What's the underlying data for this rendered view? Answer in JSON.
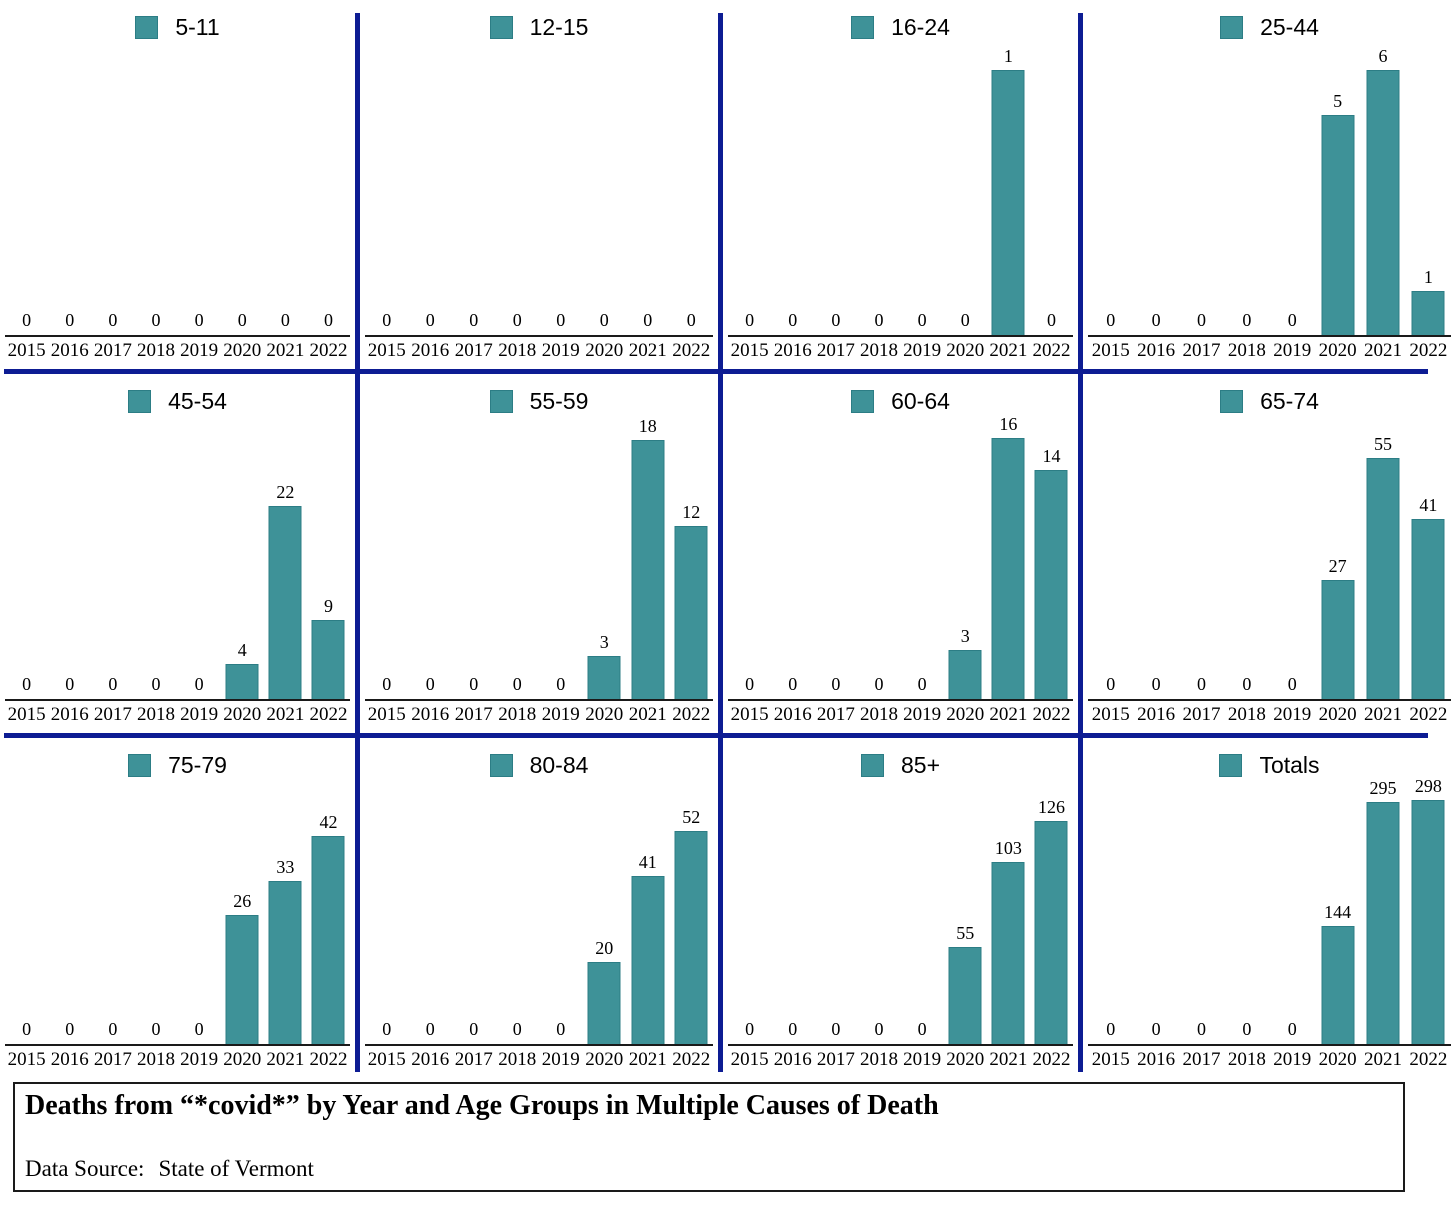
{
  "colors": {
    "bar_fill": "#3E9298",
    "bar_border": "#2C7D85",
    "divider_navy": "#0D1C93",
    "axis_black": "#1A1A1A"
  },
  "title_box": {
    "title": "Deaths from “*covid*” by Year and Age Groups in Multiple Causes of Death",
    "data_source_label": "Data Source:",
    "data_source_value": "State of Vermont"
  },
  "chart_data": {
    "type": "bar",
    "layout": "small-multiples 4x3",
    "grid": false,
    "legend_position": "upper center",
    "xlabel": "",
    "ylabel": "",
    "categories": [
      "2015",
      "2016",
      "2017",
      "2018",
      "2019",
      "2020",
      "2021",
      "2022"
    ],
    "series": [
      {
        "id": "age-5-11",
        "name": "5-11",
        "values": [
          0,
          0,
          0,
          0,
          0,
          0,
          0,
          0
        ],
        "ylim": 1
      },
      {
        "id": "age-12-15",
        "name": "12-15",
        "values": [
          0,
          0,
          0,
          0,
          0,
          0,
          0,
          0
        ],
        "ylim": 1
      },
      {
        "id": "age-16-24",
        "name": "16-24",
        "values": [
          0,
          0,
          0,
          0,
          0,
          0,
          1,
          0
        ],
        "ylim": 1.1
      },
      {
        "id": "age-25-44",
        "name": "25-44",
        "values": [
          0,
          0,
          0,
          0,
          0,
          5,
          6,
          1
        ],
        "ylim": 6.6
      },
      {
        "id": "age-45-54",
        "name": "45-54",
        "values": [
          0,
          0,
          0,
          0,
          0,
          4,
          22,
          9
        ],
        "ylim": 32
      },
      {
        "id": "age-55-59",
        "name": "55-59",
        "values": [
          0,
          0,
          0,
          0,
          0,
          3,
          18,
          12
        ],
        "ylim": 19.5
      },
      {
        "id": "age-60-64",
        "name": "60-64",
        "values": [
          0,
          0,
          0,
          0,
          0,
          3,
          16,
          14
        ],
        "ylim": 17.2
      },
      {
        "id": "age-65-74",
        "name": "65-74",
        "values": [
          0,
          0,
          0,
          0,
          0,
          27,
          55,
          41
        ],
        "ylim": 64
      },
      {
        "id": "age-75-79",
        "name": "75-79",
        "values": [
          0,
          0,
          0,
          0,
          0,
          26,
          33,
          42
        ],
        "ylim": 53
      },
      {
        "id": "age-80-84",
        "name": "80-84",
        "values": [
          0,
          0,
          0,
          0,
          0,
          20,
          41,
          52
        ],
        "ylim": 64
      },
      {
        "id": "age-85-plus",
        "name": "85+",
        "values": [
          0,
          0,
          0,
          0,
          0,
          55,
          103,
          126
        ],
        "ylim": 148
      },
      {
        "id": "totals",
        "name": "Totals",
        "values": [
          0,
          0,
          0,
          0,
          0,
          144,
          295,
          298
        ],
        "ylim": 320
      }
    ]
  }
}
